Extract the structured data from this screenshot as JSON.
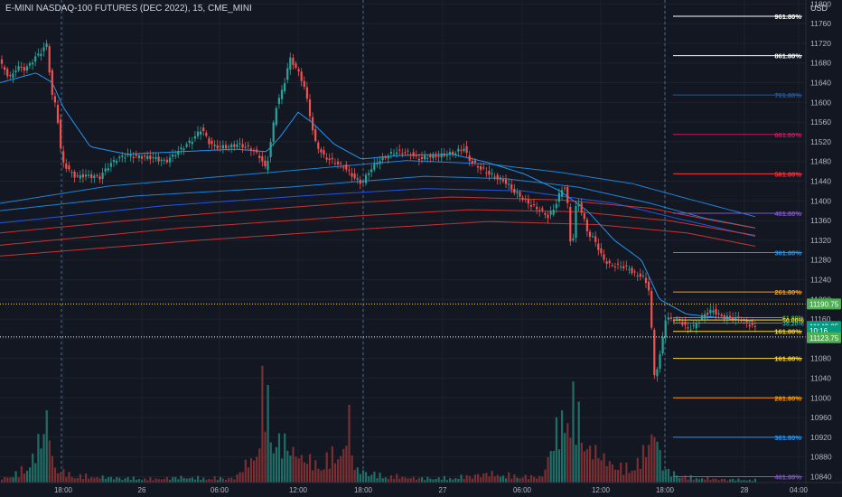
{
  "header": {
    "title": "E-MINI NASDAQ-100 FUTURES (DEC 2022), 15, CME_MINI",
    "currency": "USD"
  },
  "colors": {
    "background": "#131722",
    "up": "#26a69a",
    "down": "#ef5350",
    "vol_up": "#1f6f68",
    "vol_down": "#7a2f32",
    "ema_blue": "#2962ff",
    "ema_red": "#f23645",
    "grid": "#1e222d"
  },
  "chart_data": {
    "type": "candlestick",
    "x_ticks": [
      "18:00",
      "26",
      "06:00",
      "12:00",
      "18:00",
      "27",
      "06:00",
      "12:00",
      "18:00",
      "28",
      "04:00"
    ],
    "y_ticks": [
      11800,
      11760,
      11720,
      11680,
      11640,
      11600,
      11560,
      11520,
      11480,
      11440,
      11400,
      11360,
      11320,
      11280,
      11240,
      11200,
      11160,
      11120,
      11080,
      11040,
      11000,
      10960,
      10920,
      10880,
      10840
    ],
    "ylim": [
      10828,
      11808
    ],
    "session_breaks": [
      "18:00",
      "18:00",
      "18:00"
    ],
    "price_path": [
      [
        0,
        11688
      ],
      [
        8,
        11660
      ],
      [
        14,
        11650
      ],
      [
        20,
        11672
      ],
      [
        30,
        11668
      ],
      [
        40,
        11690
      ],
      [
        48,
        11705
      ],
      [
        54,
        11720
      ],
      [
        58,
        11620
      ],
      [
        64,
        11590
      ],
      [
        70,
        11480
      ],
      [
        78,
        11462
      ],
      [
        86,
        11448
      ],
      [
        94,
        11452
      ],
      [
        104,
        11450
      ],
      [
        112,
        11448
      ],
      [
        120,
        11468
      ],
      [
        130,
        11485
      ],
      [
        140,
        11492
      ],
      [
        155,
        11490
      ],
      [
        170,
        11488
      ],
      [
        185,
        11480
      ],
      [
        195,
        11495
      ],
      [
        205,
        11510
      ],
      [
        215,
        11525
      ],
      [
        225,
        11548
      ],
      [
        232,
        11520
      ],
      [
        240,
        11510
      ],
      [
        255,
        11510
      ],
      [
        265,
        11515
      ],
      [
        280,
        11505
      ],
      [
        290,
        11488
      ],
      [
        296,
        11462
      ],
      [
        302,
        11530
      ],
      [
        308,
        11600
      ],
      [
        315,
        11628
      ],
      [
        322,
        11690
      ],
      [
        330,
        11668
      ],
      [
        338,
        11635
      ],
      [
        344,
        11580
      ],
      [
        350,
        11520
      ],
      [
        360,
        11490
      ],
      [
        370,
        11480
      ],
      [
        382,
        11470
      ],
      [
        392,
        11450
      ],
      [
        402,
        11435
      ],
      [
        410,
        11460
      ],
      [
        420,
        11480
      ],
      [
        430,
        11492
      ],
      [
        440,
        11500
      ],
      [
        455,
        11498
      ],
      [
        465,
        11485
      ],
      [
        475,
        11490
      ],
      [
        490,
        11492
      ],
      [
        505,
        11498
      ],
      [
        515,
        11508
      ],
      [
        520,
        11485
      ],
      [
        530,
        11470
      ],
      [
        540,
        11458
      ],
      [
        550,
        11448
      ],
      [
        560,
        11440
      ],
      [
        570,
        11420
      ],
      [
        580,
        11405
      ],
      [
        590,
        11390
      ],
      [
        600,
        11380
      ],
      [
        608,
        11368
      ],
      [
        615,
        11385
      ],
      [
        622,
        11420
      ],
      [
        628,
        11432
      ],
      [
        634,
        11290
      ],
      [
        640,
        11405
      ],
      [
        646,
        11375
      ],
      [
        652,
        11335
      ],
      [
        660,
        11320
      ],
      [
        668,
        11285
      ],
      [
        676,
        11270
      ],
      [
        686,
        11268
      ],
      [
        696,
        11265
      ],
      [
        706,
        11248
      ],
      [
        712,
        11250
      ],
      [
        720,
        11220
      ],
      [
        726,
        11040
      ],
      [
        732,
        11085
      ],
      [
        738,
        11160
      ],
      [
        746,
        11160
      ],
      [
        754,
        11158
      ],
      [
        762,
        11140
      ],
      [
        770,
        11145
      ],
      [
        780,
        11168
      ],
      [
        790,
        11178
      ],
      [
        800,
        11165
      ],
      [
        812,
        11162
      ],
      [
        822,
        11160
      ],
      [
        830,
        11150
      ],
      [
        836,
        11143
      ]
    ],
    "volume_profile": [
      [
        0,
        4
      ],
      [
        20,
        10
      ],
      [
        35,
        25
      ],
      [
        45,
        45
      ],
      [
        52,
        75
      ],
      [
        60,
        15
      ],
      [
        80,
        8
      ],
      [
        110,
        6
      ],
      [
        140,
        5
      ],
      [
        170,
        4
      ],
      [
        200,
        6
      ],
      [
        220,
        5
      ],
      [
        260,
        5
      ],
      [
        285,
        35
      ],
      [
        292,
        110
      ],
      [
        300,
        65
      ],
      [
        308,
        45
      ],
      [
        318,
        40
      ],
      [
        330,
        30
      ],
      [
        350,
        20
      ],
      [
        380,
        35
      ],
      [
        386,
        70
      ],
      [
        392,
        15
      ],
      [
        420,
        8
      ],
      [
        460,
        5
      ],
      [
        500,
        5
      ],
      [
        540,
        10
      ],
      [
        560,
        8
      ],
      [
        600,
        6
      ],
      [
        612,
        45
      ],
      [
        620,
        60
      ],
      [
        628,
        95
      ],
      [
        636,
        80
      ],
      [
        650,
        40
      ],
      [
        670,
        25
      ],
      [
        690,
        15
      ],
      [
        710,
        25
      ],
      [
        722,
        55
      ],
      [
        726,
        60
      ],
      [
        732,
        20
      ],
      [
        740,
        12
      ],
      [
        760,
        6
      ],
      [
        790,
        4
      ],
      [
        836,
        3
      ]
    ],
    "emas": [
      {
        "color": "blue_light",
        "points": [
          [
            0,
            11395
          ],
          [
            120,
            11430
          ],
          [
            300,
            11458
          ],
          [
            450,
            11482
          ],
          [
            540,
            11475
          ],
          [
            620,
            11458
          ],
          [
            700,
            11435
          ],
          [
            760,
            11405
          ],
          [
            836,
            11368
          ]
        ]
      },
      {
        "color": "blue_light",
        "points": [
          [
            0,
            11380
          ],
          [
            150,
            11410
          ],
          [
            320,
            11428
          ],
          [
            470,
            11450
          ],
          [
            560,
            11445
          ],
          [
            640,
            11428
          ],
          [
            720,
            11395
          ],
          [
            780,
            11365
          ],
          [
            836,
            11345
          ]
        ]
      },
      {
        "color": "blue",
        "points": [
          [
            0,
            11355
          ],
          [
            180,
            11390
          ],
          [
            350,
            11412
          ],
          [
            470,
            11425
          ],
          [
            580,
            11420
          ],
          [
            680,
            11395
          ],
          [
            760,
            11360
          ],
          [
            836,
            11328
          ]
        ]
      },
      {
        "color": "red",
        "points": [
          [
            0,
            11335
          ],
          [
            200,
            11370
          ],
          [
            380,
            11395
          ],
          [
            500,
            11408
          ],
          [
            620,
            11402
          ],
          [
            720,
            11385
          ],
          [
            790,
            11360
          ],
          [
            836,
            11345
          ]
        ]
      },
      {
        "color": "red",
        "points": [
          [
            0,
            11310
          ],
          [
            200,
            11345
          ],
          [
            400,
            11370
          ],
          [
            520,
            11382
          ],
          [
            640,
            11378
          ],
          [
            740,
            11360
          ],
          [
            836,
            11330
          ]
        ]
      },
      {
        "color": "red",
        "points": [
          [
            0,
            11288
          ],
          [
            220,
            11320
          ],
          [
            420,
            11345
          ],
          [
            540,
            11358
          ],
          [
            660,
            11352
          ],
          [
            760,
            11335
          ],
          [
            836,
            11308
          ]
        ]
      }
    ],
    "short_ema": [
      [
        0,
        11640
      ],
      [
        40,
        11660
      ],
      [
        58,
        11640
      ],
      [
        70,
        11590
      ],
      [
        100,
        11510
      ],
      [
        140,
        11495
      ],
      [
        200,
        11500
      ],
      [
        260,
        11505
      ],
      [
        295,
        11500
      ],
      [
        310,
        11530
      ],
      [
        330,
        11580
      ],
      [
        345,
        11560
      ],
      [
        370,
        11515
      ],
      [
        400,
        11485
      ],
      [
        440,
        11492
      ],
      [
        500,
        11495
      ],
      [
        540,
        11478
      ],
      [
        580,
        11455
      ],
      [
        620,
        11420
      ],
      [
        650,
        11380
      ],
      [
        680,
        11320
      ],
      [
        710,
        11280
      ],
      [
        730,
        11200
      ],
      [
        760,
        11170
      ],
      [
        800,
        11162
      ],
      [
        836,
        11155
      ]
    ],
    "fib_levels_upper": [
      {
        "label": "961.80%",
        "price": 11775,
        "color": "#ffffff"
      },
      {
        "label": "861.80%",
        "price": 11695,
        "color": "#ffffff"
      },
      {
        "label": "761.80%",
        "price": 11615,
        "color": "#1e5aa8"
      },
      {
        "label": "661.80%",
        "price": 11535,
        "color": "#c2185b"
      },
      {
        "label": "561.80%",
        "price": 11455,
        "color": "#f23645"
      },
      {
        "label": "461.80%",
        "price": 11375,
        "color": "#7e57c2"
      },
      {
        "label": "361.80%",
        "price": 11295,
        "color": "#2196f3"
      },
      {
        "label": "261.80%",
        "price": 11215,
        "color": "#ff9800"
      },
      {
        "label": "161.80%",
        "price": 11135,
        "color": "#fdd835"
      }
    ],
    "fib_levels_lower": [
      {
        "label": "161.80%",
        "price": 11080,
        "color": "#fdd835"
      },
      {
        "label": "261.80%",
        "price": 11000,
        "color": "#ff9800"
      },
      {
        "label": "361.80%",
        "price": 10920,
        "color": "#2196f3"
      },
      {
        "label": "461.80%",
        "price": 10840,
        "color": "#7e57c2"
      }
    ],
    "fib_cluster": [
      {
        "label": "61.80%",
        "price": 11163,
        "color": "#4caf50"
      },
      {
        "label": "50.00%",
        "price": 11158,
        "color": "#fdd835"
      },
      {
        "label": "38.20%",
        "price": 11152,
        "color": "#26a69a"
      }
    ],
    "dotted_lines": [
      {
        "price": 11190.75,
        "color": "#fdd835"
      },
      {
        "price": 11123.75,
        "color": "#ffffff"
      }
    ],
    "price_tags": [
      {
        "text": "11190.75",
        "price": 11190.75,
        "bg": "#4caf50",
        "fg": "#ffffff"
      },
      {
        "text": "11143.25",
        "price": 11145,
        "bg": "#089981",
        "fg": "#ffffff"
      },
      {
        "text": "10:16",
        "price": 11136,
        "bg": "#089981",
        "fg": "#ffffff"
      },
      {
        "text": "11123.75",
        "price": 11122,
        "bg": "#4caf50",
        "fg": "#ffffff"
      }
    ]
  }
}
